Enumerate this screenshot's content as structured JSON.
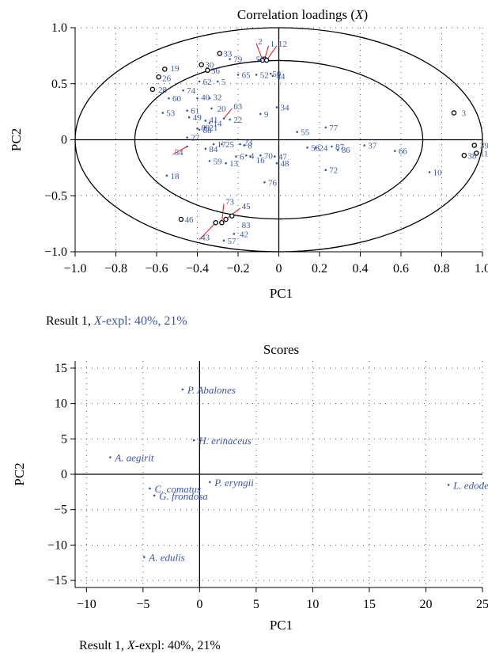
{
  "colors": {
    "axis": "#000000",
    "label_blue": "#3d55a6",
    "leader_red": "#e0262b",
    "grid": "#555555"
  },
  "chart_data": [
    {
      "type": "scatter",
      "title": "Correlation loadings (X)",
      "title_main": "Correlation loadings (",
      "title_var": "X",
      "title_tail": ")",
      "xlabel": "PC1",
      "ylabel": "PC2",
      "xlim": [
        -1.0,
        1.0
      ],
      "ylim": [
        -1.0,
        1.0
      ],
      "xticks": [
        -1.0,
        -0.8,
        -0.6,
        -0.4,
        -0.2,
        0,
        0.2,
        0.4,
        0.6,
        0.8,
        1.0
      ],
      "yticks": [
        -1.0,
        -0.5,
        0,
        0.5,
        1.0
      ],
      "xtick_labels": [
        "−1.0",
        "−0.8",
        "−0.6",
        "−0.4",
        "−0.2",
        "0",
        "0.2",
        "0.4",
        "0.6",
        "0.8",
        "1.0"
      ],
      "ytick_labels": [
        "−1.0",
        "−0.5",
        "0",
        "0.5",
        "1.0"
      ],
      "grid": "dotted",
      "circles": [
        1.0,
        0.707
      ],
      "caption": "Result 1, X-expl: 40%, 21%",
      "caption_prefix": "Result 1, ",
      "caption_var": "X",
      "caption_suffix": "-expl: 40%, 21%",
      "points": [
        {
          "label": "1",
          "x": -0.07,
          "y": 0.72,
          "lx": -0.05,
          "ly": 0.86,
          "ring": true
        },
        {
          "label": "2",
          "x": -0.08,
          "y": 0.71,
          "lx": -0.11,
          "ly": 0.88,
          "ring": true
        },
        {
          "label": "12",
          "x": -0.06,
          "y": 0.71,
          "lx": -0.01,
          "ly": 0.86,
          "ring": true
        },
        {
          "label": "56",
          "x": -0.1,
          "y": 0.71,
          "lx": -0.12,
          "ly": 0.72
        },
        {
          "label": "3",
          "x": 0.86,
          "y": 0.24,
          "lx": 0.89,
          "ly": 0.24,
          "ring": true
        },
        {
          "label": "5",
          "x": -0.3,
          "y": 0.52,
          "lx": -0.29,
          "ly": 0.52
        },
        {
          "label": "9",
          "x": -0.09,
          "y": 0.23,
          "lx": -0.08,
          "ly": 0.23
        },
        {
          "label": "10",
          "x": 0.74,
          "y": -0.29,
          "lx": 0.75,
          "ly": -0.29
        },
        {
          "label": "11",
          "x": 0.97,
          "y": -0.12,
          "lx": 0.98,
          "ly": -0.12,
          "ring": true
        },
        {
          "label": "13",
          "x": -0.26,
          "y": -0.21,
          "lx": -0.25,
          "ly": -0.21
        },
        {
          "label": "16",
          "x": -0.14,
          "y": -0.15,
          "lx": -0.12,
          "ly": -0.18
        },
        {
          "label": "17",
          "x": -0.32,
          "y": -0.04,
          "lx": -0.31,
          "ly": -0.04
        },
        {
          "label": "18",
          "x": -0.55,
          "y": -0.32,
          "lx": -0.54,
          "ly": -0.32
        },
        {
          "label": "19",
          "x": -0.56,
          "y": 0.63,
          "lx": -0.54,
          "ly": 0.64,
          "ring": true
        },
        {
          "label": "20",
          "x": -0.33,
          "y": 0.28,
          "lx": -0.31,
          "ly": 0.28
        },
        {
          "label": "22",
          "x": -0.24,
          "y": 0.18,
          "lx": -0.23,
          "ly": 0.18
        },
        {
          "label": "23",
          "x": -0.19,
          "y": -0.04,
          "lx": -0.18,
          "ly": -0.02
        },
        {
          "label": "25",
          "x": -0.28,
          "y": -0.04,
          "lx": -0.27,
          "ly": -0.04
        },
        {
          "label": "26",
          "x": -0.59,
          "y": 0.56,
          "lx": -0.58,
          "ly": 0.55,
          "ring": true
        },
        {
          "label": "27",
          "x": -0.45,
          "y": 0.02,
          "lx": -0.44,
          "ly": 0.02
        },
        {
          "label": "28",
          "x": -0.62,
          "y": 0.45,
          "lx": -0.6,
          "ly": 0.45,
          "ring": true
        },
        {
          "label": "30",
          "x": -0.38,
          "y": 0.67,
          "lx": -0.37,
          "ly": 0.67,
          "ring": true
        },
        {
          "label": "33",
          "x": -0.29,
          "y": 0.77,
          "lx": -0.28,
          "ly": 0.77,
          "ring": true
        },
        {
          "label": "34",
          "x": -0.01,
          "y": 0.29,
          "lx": 0.0,
          "ly": 0.29
        },
        {
          "label": "36",
          "x": -0.35,
          "y": 0.62,
          "lx": -0.34,
          "ly": 0.62,
          "ring": true
        },
        {
          "label": "37",
          "x": 0.42,
          "y": -0.05,
          "lx": 0.43,
          "ly": -0.05
        },
        {
          "label": "38",
          "x": 0.91,
          "y": -0.14,
          "lx": 0.92,
          "ly": -0.14,
          "ring": true
        },
        {
          "label": "39",
          "x": 0.96,
          "y": -0.05,
          "lx": 0.98,
          "ly": -0.05,
          "ring": true
        },
        {
          "label": "42",
          "x": -0.22,
          "y": -0.84,
          "lx": -0.2,
          "ly": -0.84
        },
        {
          "label": "43",
          "x": -0.31,
          "y": -0.74,
          "lx": -0.39,
          "ly": -0.87,
          "ring": true
        },
        {
          "label": "45",
          "x": -0.26,
          "y": -0.71,
          "lx": -0.19,
          "ly": -0.59,
          "ring": true
        },
        {
          "label": "46",
          "x": -0.48,
          "y": -0.71,
          "lx": -0.47,
          "ly": -0.71,
          "ring": true
        },
        {
          "label": "47",
          "x": -0.02,
          "y": -0.15,
          "lx": -0.01,
          "ly": -0.15
        },
        {
          "label": "49",
          "x": -0.44,
          "y": 0.2,
          "lx": -0.43,
          "ly": 0.2
        },
        {
          "label": "50",
          "x": -0.04,
          "y": 0.59,
          "lx": -0.04,
          "ly": 0.59
        },
        {
          "label": "52",
          "x": -0.11,
          "y": 0.58,
          "lx": -0.1,
          "ly": 0.58
        },
        {
          "label": "53",
          "x": -0.57,
          "y": 0.24,
          "lx": -0.56,
          "ly": 0.24
        },
        {
          "label": "54",
          "x": -0.45,
          "y": -0.06,
          "lx": -0.52,
          "ly": -0.11
        },
        {
          "label": "55",
          "x": 0.09,
          "y": 0.07,
          "lx": 0.1,
          "ly": 0.07
        },
        {
          "label": "57",
          "x": -0.27,
          "y": -0.9,
          "lx": -0.26,
          "ly": -0.9
        },
        {
          "label": "59",
          "x": -0.34,
          "y": -0.19,
          "lx": -0.33,
          "ly": -0.19
        },
        {
          "label": "60",
          "x": -0.54,
          "y": 0.37,
          "lx": -0.53,
          "ly": 0.37
        },
        {
          "label": "61",
          "x": -0.45,
          "y": 0.26,
          "lx": -0.44,
          "ly": 0.26
        },
        {
          "label": "62",
          "x": -0.39,
          "y": 0.52,
          "lx": -0.38,
          "ly": 0.52
        },
        {
          "label": "63",
          "x": -0.27,
          "y": 0.19,
          "lx": -0.23,
          "ly": 0.3
        },
        {
          "label": "65",
          "x": -0.2,
          "y": 0.58,
          "lx": -0.19,
          "ly": 0.58
        },
        {
          "label": "66",
          "x": 0.57,
          "y": -0.1,
          "lx": 0.58,
          "ly": -0.1
        },
        {
          "label": "70",
          "x": -0.09,
          "y": -0.14,
          "lx": -0.08,
          "ly": -0.14
        },
        {
          "label": "72",
          "x": 0.23,
          "y": -0.27,
          "lx": 0.24,
          "ly": -0.27
        },
        {
          "label": "73",
          "x": -0.28,
          "y": -0.74,
          "lx": -0.27,
          "ly": -0.55,
          "ring": true
        },
        {
          "label": "74",
          "x": -0.47,
          "y": 0.44,
          "lx": -0.46,
          "ly": 0.44
        },
        {
          "label": "76",
          "x": -0.07,
          "y": -0.38,
          "lx": -0.06,
          "ly": -0.38
        },
        {
          "label": "77",
          "x": 0.23,
          "y": 0.11,
          "lx": 0.24,
          "ly": 0.11
        },
        {
          "label": "79",
          "x": -0.24,
          "y": 0.72,
          "lx": -0.23,
          "ly": 0.72
        },
        {
          "label": "83",
          "x": -0.23,
          "y": -0.68,
          "lx": -0.19,
          "ly": -0.76,
          "ring": true
        },
        {
          "label": "84",
          "x": -0.36,
          "y": -0.08,
          "lx": -0.35,
          "ly": -0.08
        },
        {
          "label": "86",
          "x": 0.29,
          "y": -0.09,
          "lx": 0.3,
          "ly": -0.09
        },
        {
          "label": "87",
          "x": 0.26,
          "y": -0.06,
          "lx": 0.27,
          "ly": -0.06
        },
        {
          "label": "88",
          "x": -0.39,
          "y": 0.09,
          "lx": -0.38,
          "ly": 0.09
        },
        {
          "label": "89",
          "x": -0.4,
          "y": 0.1,
          "lx": -0.39,
          "ly": 0.11
        },
        {
          "label": "6",
          "x": -0.21,
          "y": -0.15,
          "lx": -0.2,
          "ly": -0.15
        },
        {
          "label": "8",
          "x": -0.17,
          "y": -0.05,
          "lx": -0.16,
          "ly": -0.05
        },
        {
          "label": "40",
          "x": -0.4,
          "y": 0.37,
          "lx": -0.39,
          "ly": 0.38
        },
        {
          "label": "32",
          "x": -0.34,
          "y": 0.37,
          "lx": -0.33,
          "ly": 0.38
        },
        {
          "label": "41",
          "x": -0.36,
          "y": 0.17,
          "lx": -0.35,
          "ly": 0.18
        },
        {
          "label": "14",
          "x": -0.34,
          "y": 0.15,
          "lx": -0.33,
          "ly": 0.15
        },
        {
          "label": "21",
          "x": -0.36,
          "y": 0.11,
          "lx": -0.35,
          "ly": 0.11
        },
        {
          "label": "4",
          "x": -0.16,
          "y": -0.14,
          "lx": -0.15,
          "ly": -0.14
        },
        {
          "label": "44",
          "x": -0.03,
          "y": 0.57,
          "lx": -0.02,
          "ly": 0.57
        },
        {
          "label": "58",
          "x": 0.14,
          "y": -0.07,
          "lx": 0.15,
          "ly": -0.07
        },
        {
          "label": "48",
          "x": -0.01,
          "y": -0.21,
          "lx": 0.0,
          "ly": -0.21
        },
        {
          "label": "24",
          "x": 0.18,
          "y": -0.07,
          "lx": 0.19,
          "ly": -0.07
        }
      ]
    },
    {
      "type": "scatter",
      "title": "Scores",
      "xlabel": "PC1",
      "ylabel": "PC2",
      "xlim": [
        -11,
        25
      ],
      "ylim": [
        -16,
        16
      ],
      "xticks": [
        -10,
        -5,
        0,
        5,
        10,
        15,
        20,
        25
      ],
      "yticks": [
        -15,
        -10,
        -5,
        0,
        5,
        10,
        15
      ],
      "xtick_labels": [
        "−10",
        "−5",
        "0",
        "5",
        "10",
        "15",
        "20",
        "25"
      ],
      "ytick_labels": [
        "−15",
        "−10",
        "−5",
        "0",
        "5",
        "10",
        "15"
      ],
      "grid": "dotted",
      "caption": "Result 1, X-expl: 40%, 21%",
      "caption_prefix": "Result 1, ",
      "caption_var": "X",
      "caption_suffix": "-expl: 40%, 21%",
      "points": [
        {
          "label": "P. Abalones",
          "x": -1.5,
          "y": 12.0
        },
        {
          "label": "H. erinaceus",
          "x": -0.5,
          "y": 4.8
        },
        {
          "label": "A. aegirit",
          "x": -7.9,
          "y": 2.4
        },
        {
          "label": "P. eryngii",
          "x": 0.9,
          "y": -1.1
        },
        {
          "label": "C. comatus",
          "x": -4.4,
          "y": -2.0
        },
        {
          "label": "G. frondosa",
          "x": -4.0,
          "y": -3.0
        },
        {
          "label": "L. edodes",
          "x": 22.0,
          "y": -1.5
        },
        {
          "label": "A. edulis",
          "x": -4.9,
          "y": -11.7
        }
      ]
    }
  ]
}
